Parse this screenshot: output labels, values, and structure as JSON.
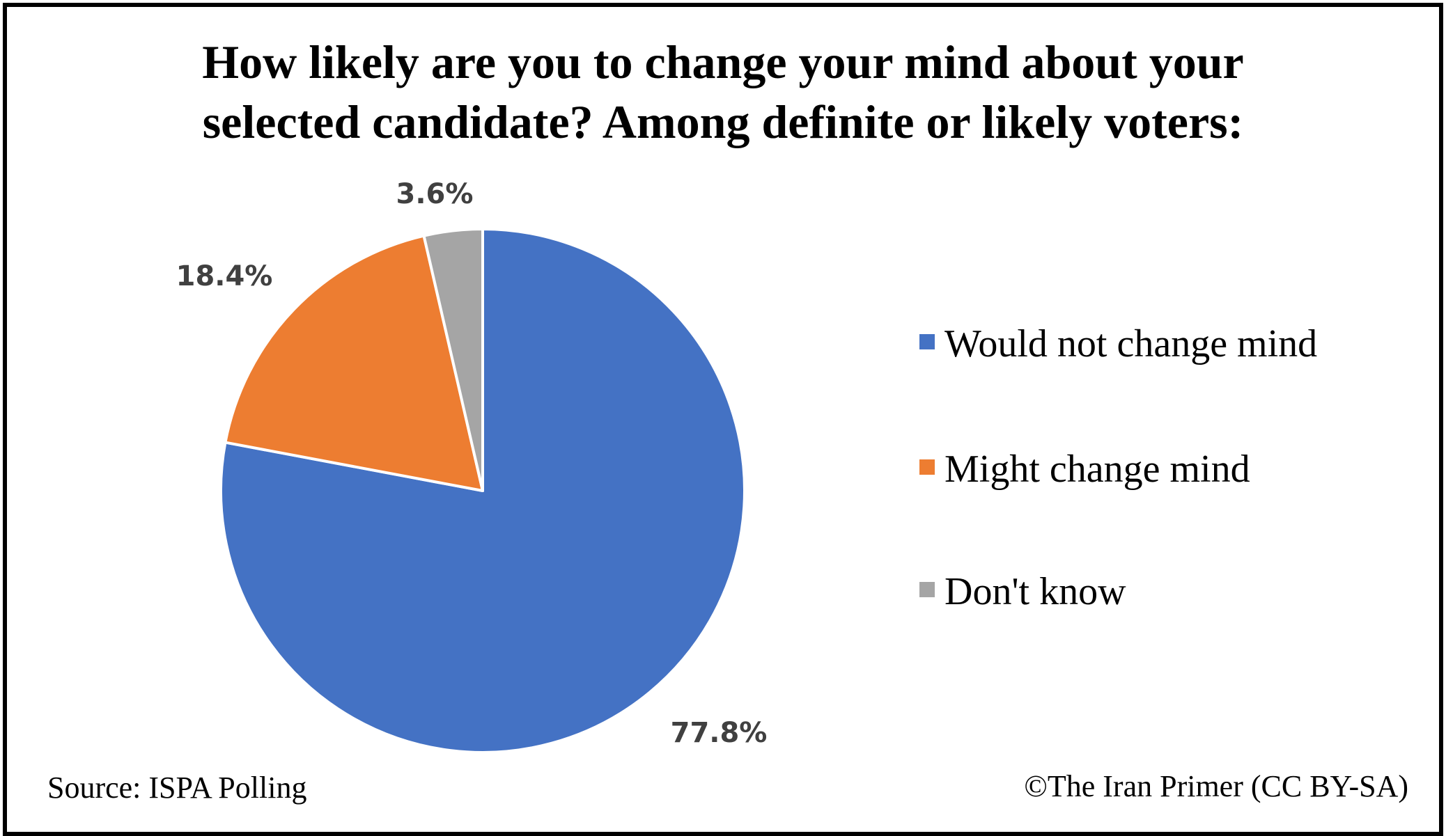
{
  "chart_data": {
    "type": "pie",
    "title_lines": [
      "How likely are you to change your mind about your",
      "selected candidate? Among definite or likely voters:"
    ],
    "slices": [
      {
        "label": "Would not change mind",
        "value": 77.8,
        "display": "77.8%",
        "color": "#4472C4"
      },
      {
        "label": "Might change mind",
        "value": 18.4,
        "display": "18.4%",
        "color": "#ED7D31"
      },
      {
        "label": "Don't know",
        "value": 3.6,
        "display": "3.6%",
        "color": "#A5A5A5"
      }
    ],
    "start_angle": "12 o'clock, clockwise",
    "legend_position": "right"
  },
  "footer": {
    "source": "Source: ISPA Polling",
    "credit": "©The Iran Primer (CC BY-SA)"
  }
}
